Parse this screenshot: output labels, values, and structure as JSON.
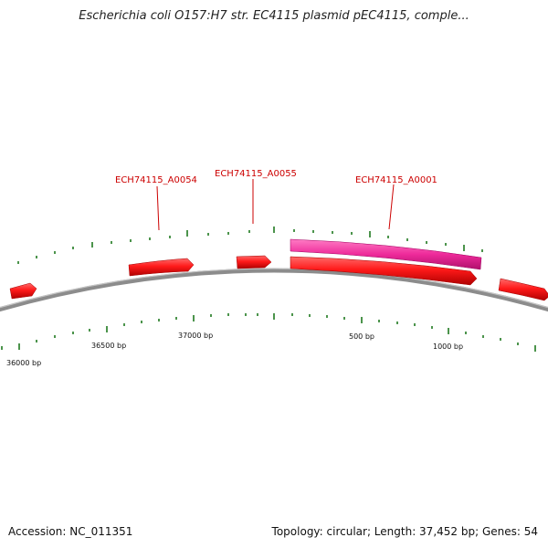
{
  "title": "Escherichia coli O157:H7 str. EC4115 plasmid pEC4115, comple...",
  "footer": {
    "accession": "Accession: NC_011351",
    "summary": "Topology: circular; Length: 37,452 bp; Genes: 54"
  },
  "colors": {
    "gene": "#e60000",
    "gene_highlight": "#e8208f",
    "backbone": "#8a8a8a",
    "tick": "#1a7a1a",
    "label": "#cc0000"
  },
  "genome_length_bp": 37452,
  "gene_labels": [
    "ECH74115_A0054",
    "ECH74115_A0055",
    "ECH74115_A0001"
  ],
  "tick_labels": [
    "36000 bp",
    "36500 bp",
    "37000 bp",
    "500 bp",
    "1000 bp"
  ]
}
